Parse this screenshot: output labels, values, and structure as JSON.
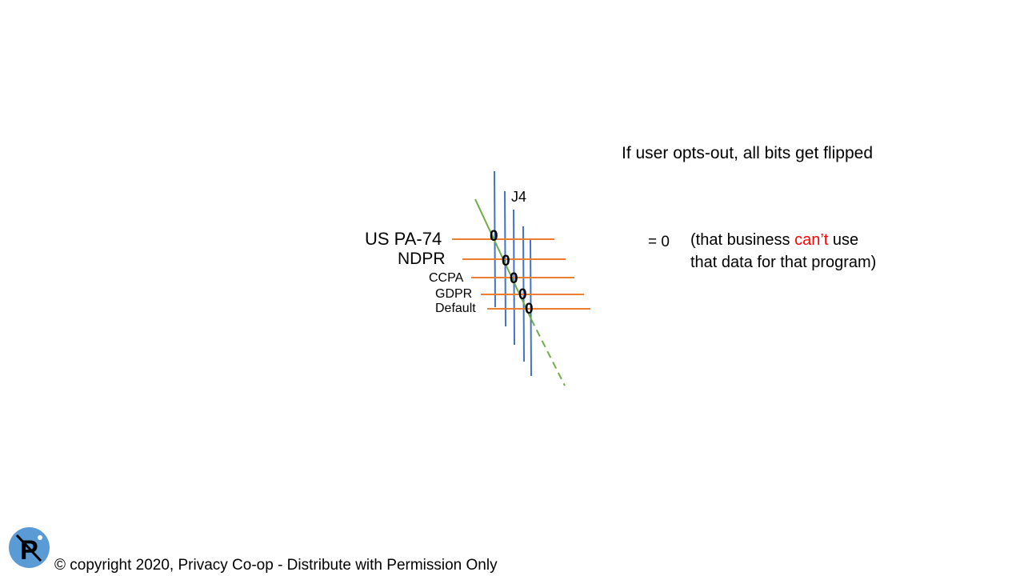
{
  "headline": "If user opts-out, all bits get flipped",
  "diagram": {
    "column_label": "J4",
    "rows": [
      {
        "label": "US PA-74",
        "bit": "0"
      },
      {
        "label": "NDPR",
        "bit": "0"
      },
      {
        "label": "CCPA",
        "bit": "0"
      },
      {
        "label": "GDPR",
        "bit": "0"
      },
      {
        "label": "Default",
        "bit": "0"
      }
    ],
    "colors": {
      "vertical": "#4472c4",
      "horizontal": "#ed7d31",
      "diagonal": "#70ad47"
    }
  },
  "result": {
    "equals": "= 0",
    "note_open": "(that business ",
    "note_emphasis": "can’t",
    "note_after": " use",
    "note_line2": "that data for that program)",
    "emphasis_color": "#ff0000"
  },
  "footer": {
    "copyright": "© copyright 2020, Privacy Co-op - Distribute with Permission Only",
    "logo_letter": "P",
    "logo_color": "#5b9bd5"
  }
}
